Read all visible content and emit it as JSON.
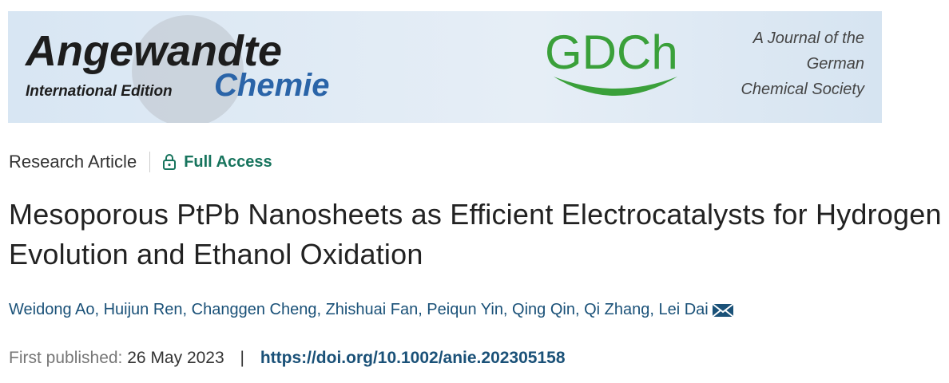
{
  "banner": {
    "title": "Angewandte",
    "edition": "International Edition",
    "subtitle": "Chemie",
    "society_logo": "GDCh",
    "society_lines": [
      "A Journal of the",
      "German",
      "Chemical Society"
    ]
  },
  "article": {
    "type": "Research Article",
    "access": "Full Access",
    "title": "Mesoporous PtPb Nanosheets as Efficient Electrocatalysts for Hydrogen Evolution and Ethanol Oxidation",
    "authors": "Weidong Ao, Huijun Ren, Changgen Cheng, Zhishuai Fan, Peiqun Yin, Qing Qin, Qi Zhang, Lei Dai",
    "published_label": "First published:",
    "published_date": "26 May 2023",
    "separator": "|",
    "doi": "https://doi.org/10.1002/anie.202305158"
  }
}
